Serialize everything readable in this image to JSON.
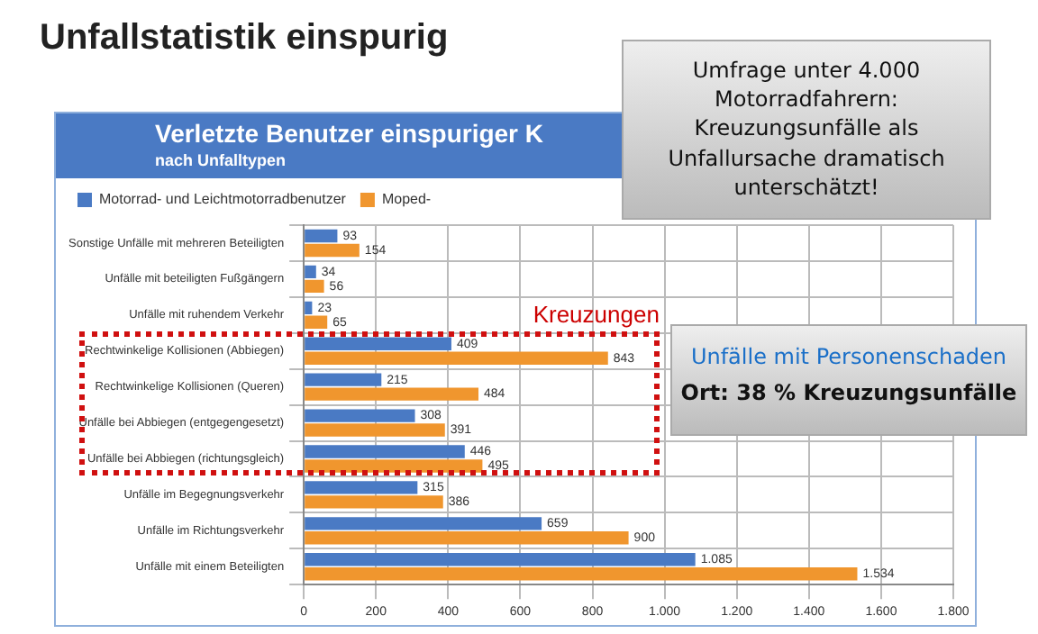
{
  "chart_data": {
    "type": "bar",
    "orientation": "horizontal",
    "title": "Unfallstatistik einspurig",
    "subtitle": "Verletzte Benutzer einspuriger K",
    "xlabel": "nach Unfalltypen",
    "categories": [
      "Sonstige Unfälle mit mehreren Beteiligten",
      "Unfälle mit beteiligten Fußgängern",
      "Unfälle mit ruhendem Verkehr",
      "Rechtwinkelige Kollisionen (Abbiegen)",
      "Rechtwinkelige Kollisionen (Queren)",
      "Unfälle bei Abbiegen (entgegengesetzt)",
      "Unfälle bei Abbiegen (richtungsgleich)",
      "Unfälle im Begegnungsverkehr",
      "Unfälle im Richtungsverkehr",
      "Unfälle mit einem Beteiligten"
    ],
    "series": [
      {
        "name": "Motorrad- und Leichtmotorradbenutzer",
        "color": "#4a7ac4",
        "values": [
          93,
          34,
          23,
          409,
          215,
          308,
          446,
          315,
          659,
          1085
        ],
        "value_labels": [
          "93",
          "34",
          "23",
          "409",
          "215",
          "308",
          "446",
          "315",
          "659",
          "1.085"
        ]
      },
      {
        "name": "Moped-",
        "color": "#f0962e",
        "values": [
          154,
          56,
          65,
          843,
          484,
          391,
          495,
          386,
          900,
          1534
        ],
        "value_labels": [
          "154",
          "56",
          "65",
          "843",
          "484",
          "391",
          "495",
          "386",
          "900",
          "1.534"
        ]
      }
    ],
    "xlim": [
      0,
      1800
    ],
    "xticks": [
      0,
      {
        "value": 200,
        "label": "200"
      },
      {
        "value": 400,
        "label": "400"
      },
      {
        "value": 600,
        "label": "600"
      },
      {
        "value": 800,
        "label": "800"
      },
      {
        "value": 1000,
        "label": "1.000"
      },
      {
        "value": 1200,
        "label": "1.200"
      },
      {
        "value": 1400,
        "label": "1.400"
      },
      {
        "value": 1600,
        "label": "1.600"
      },
      {
        "value": 1800,
        "label": "1.800"
      }
    ],
    "grid": true,
    "legend": "top left",
    "annotations": [
      "Umfrage unter 4.000 Motorradfahrern: Kreuzungsunfälle als Unfallursache dramatisch unterschätzt!",
      "Unfälle mit Personenschaden",
      "Ort: 38 % Kreuzungsunfälle",
      "Kreuzungen"
    ]
  }
}
